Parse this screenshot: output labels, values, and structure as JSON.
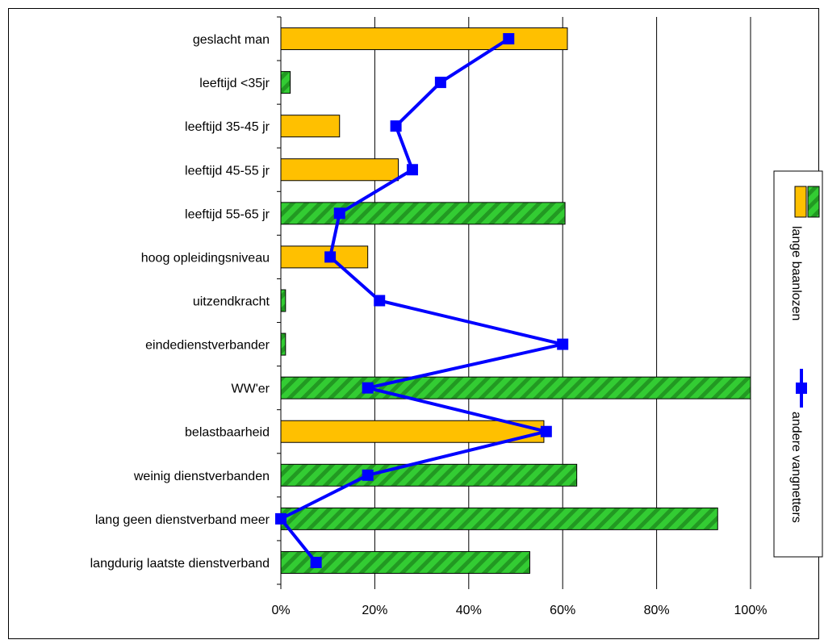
{
  "chart_data": {
    "type": "bar",
    "orientation": "horizontal",
    "categories": [
      "geslacht man",
      "leeftijd <35jr",
      "leeftijd 35-45 jr",
      "leeftijd 45-55 jr",
      "leeftijd 55-65 jr",
      "hoog opleidingsniveau",
      "uitzendkracht",
      "eindedienstverbander",
      "WW'er",
      "belastbaarheid",
      "weinig dienstverbanden",
      "lang geen dienstverband meer",
      "langdurig laatste dienstverband"
    ],
    "series": [
      {
        "name": "lange baanlozen",
        "type": "bar",
        "values": [
          61,
          2,
          12.5,
          25,
          60.5,
          18.5,
          1,
          1,
          100,
          56,
          63,
          93,
          53
        ],
        "styles": [
          "solid",
          "hatched",
          "solid",
          "solid",
          "hatched",
          "solid",
          "hatched",
          "hatched",
          "hatched",
          "solid",
          "hatched",
          "hatched",
          "hatched"
        ]
      },
      {
        "name": "andere vangnetters",
        "type": "line",
        "values": [
          48.5,
          34,
          24.5,
          28,
          12.5,
          10.5,
          21,
          60,
          18.5,
          56.5,
          18.5,
          0,
          7.5
        ]
      }
    ],
    "xaxis": {
      "ticks": [
        "0%",
        "20%",
        "40%",
        "60%",
        "80%",
        "100%"
      ],
      "xlim": [
        0,
        100
      ]
    },
    "grid": "vertical",
    "legend_position": "right",
    "colors": {
      "solid_bar": "#ffc000",
      "hatch_fill": "#33cc33",
      "hatch_stripe": "#229922",
      "line": "#0000ff",
      "marker": "#0000ff"
    }
  }
}
